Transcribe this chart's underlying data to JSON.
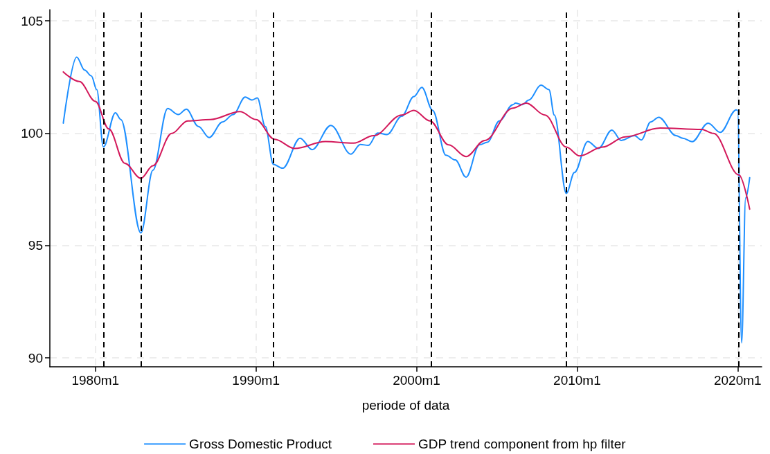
{
  "chart_data": {
    "type": "line",
    "xlabel": "periode of data",
    "xlim": [
      "1977-03",
      "2021-07"
    ],
    "ylim": [
      89.6,
      105.5
    ],
    "xticks": [
      {
        "value": "1980-01",
        "label": "1980m1"
      },
      {
        "value": "1990-01",
        "label": "1990m1"
      },
      {
        "value": "2000-01",
        "label": "2000m1"
      },
      {
        "value": "2010-01",
        "label": "2010m1"
      },
      {
        "value": "2020-01",
        "label": "2020m1"
      }
    ],
    "yticks": [
      90,
      95,
      100,
      105
    ],
    "grid": true,
    "legend": "bottom",
    "line_style": "solid",
    "series": [
      {
        "name": "Gross Domestic Product",
        "color": "#1e8fff",
        "x": [
          "1978-01",
          "1978-11",
          "1979-05",
          "1979-10",
          "1980-02",
          "1980-07",
          "1981-04",
          "1981-08",
          "1982-11",
          "1983-08",
          "1984-07",
          "1985-03",
          "1985-09",
          "1986-06",
          "1987-02",
          "1987-12",
          "1988-08",
          "1989-05",
          "1989-10",
          "1990-02",
          "1990-08",
          "1991-02",
          "1991-09",
          "1992-10",
          "1993-07",
          "1994-09",
          "1995-12",
          "1996-07",
          "1997-01",
          "1997-08",
          "1998-03",
          "1999-02",
          "1999-11",
          "2000-05",
          "2001-01",
          "2001-11",
          "2002-06",
          "2003-02",
          "2003-12",
          "2004-06",
          "2005-03",
          "2006-01",
          "2006-03",
          "2006-08",
          "2007-01",
          "2007-10",
          "2008-04",
          "2008-08",
          "2009-05",
          "2009-11",
          "2010-09",
          "2011-05",
          "2012-03",
          "2012-10",
          "2013-08",
          "2014-01",
          "2014-08",
          "2015-02",
          "2016-03",
          "2016-08",
          "2017-03",
          "2018-03",
          "2018-12",
          "2019-12",
          "2020-01",
          "2020-04",
          "2020-07",
          "2020-10"
        ],
        "values": [
          100.45,
          103.39,
          102.81,
          102.55,
          101.94,
          99.39,
          100.91,
          100.61,
          95.56,
          98.35,
          101.1,
          100.83,
          101.07,
          100.3,
          99.81,
          100.5,
          100.83,
          101.61,
          101.48,
          101.57,
          100.3,
          98.61,
          98.44,
          99.78,
          99.27,
          100.35,
          99.07,
          99.5,
          99.46,
          100.01,
          99.94,
          100.76,
          101.63,
          102.04,
          101.02,
          99.02,
          98.81,
          98.04,
          99.48,
          99.6,
          100.55,
          101.27,
          101.34,
          101.27,
          101.48,
          102.14,
          101.94,
          100.81,
          97.32,
          98.25,
          99.63,
          99.32,
          100.14,
          99.68,
          99.89,
          99.7,
          100.5,
          100.71,
          99.89,
          99.78,
          99.62,
          100.45,
          100.04,
          101.04,
          101.02,
          90.66,
          97.12,
          98.02
        ]
      },
      {
        "name": "GDP trend component from hp filter",
        "color": "#d3185a",
        "x": [
          "1978-01",
          "1979-01",
          "1980-01",
          "1980-11",
          "1981-11",
          "1982-11",
          "1983-08",
          "1984-10",
          "1985-10",
          "1987-03",
          "1989-01",
          "1990-01",
          "1991-03",
          "1992-06",
          "1994-05",
          "1996-02",
          "1997-05",
          "1999-02",
          "1999-11",
          "2000-11",
          "2002-01",
          "2003-02",
          "2004-04",
          "2006-01",
          "2006-11",
          "2008-01",
          "2009-05",
          "2010-03",
          "2011-08",
          "2013-01",
          "2015-03",
          "2017-10",
          "2018-07",
          "2020-02",
          "2020-10"
        ],
        "values": [
          102.73,
          102.3,
          101.42,
          100.19,
          98.66,
          97.99,
          98.55,
          99.99,
          100.55,
          100.61,
          100.96,
          100.61,
          99.73,
          99.32,
          99.63,
          99.56,
          99.89,
          100.81,
          101.02,
          100.55,
          99.48,
          98.96,
          99.68,
          101.12,
          101.34,
          100.81,
          99.38,
          98.99,
          99.38,
          99.84,
          100.23,
          100.17,
          99.99,
          98.14,
          96.62
        ]
      }
    ],
    "ref_lines": [
      {
        "axis": "x",
        "value": "1980-07",
        "color": "#000000",
        "line_style": "dashed"
      },
      {
        "axis": "x",
        "value": "1982-11",
        "color": "#000000",
        "line_style": "dashed"
      },
      {
        "axis": "x",
        "value": "1991-02",
        "color": "#000000",
        "line_style": "dashed"
      },
      {
        "axis": "x",
        "value": "2000-12",
        "color": "#000000",
        "line_style": "dashed"
      },
      {
        "axis": "x",
        "value": "2009-05",
        "color": "#000000",
        "line_style": "dashed"
      },
      {
        "axis": "x",
        "value": "2020-02",
        "color": "#000000",
        "line_style": "dashed"
      }
    ]
  }
}
